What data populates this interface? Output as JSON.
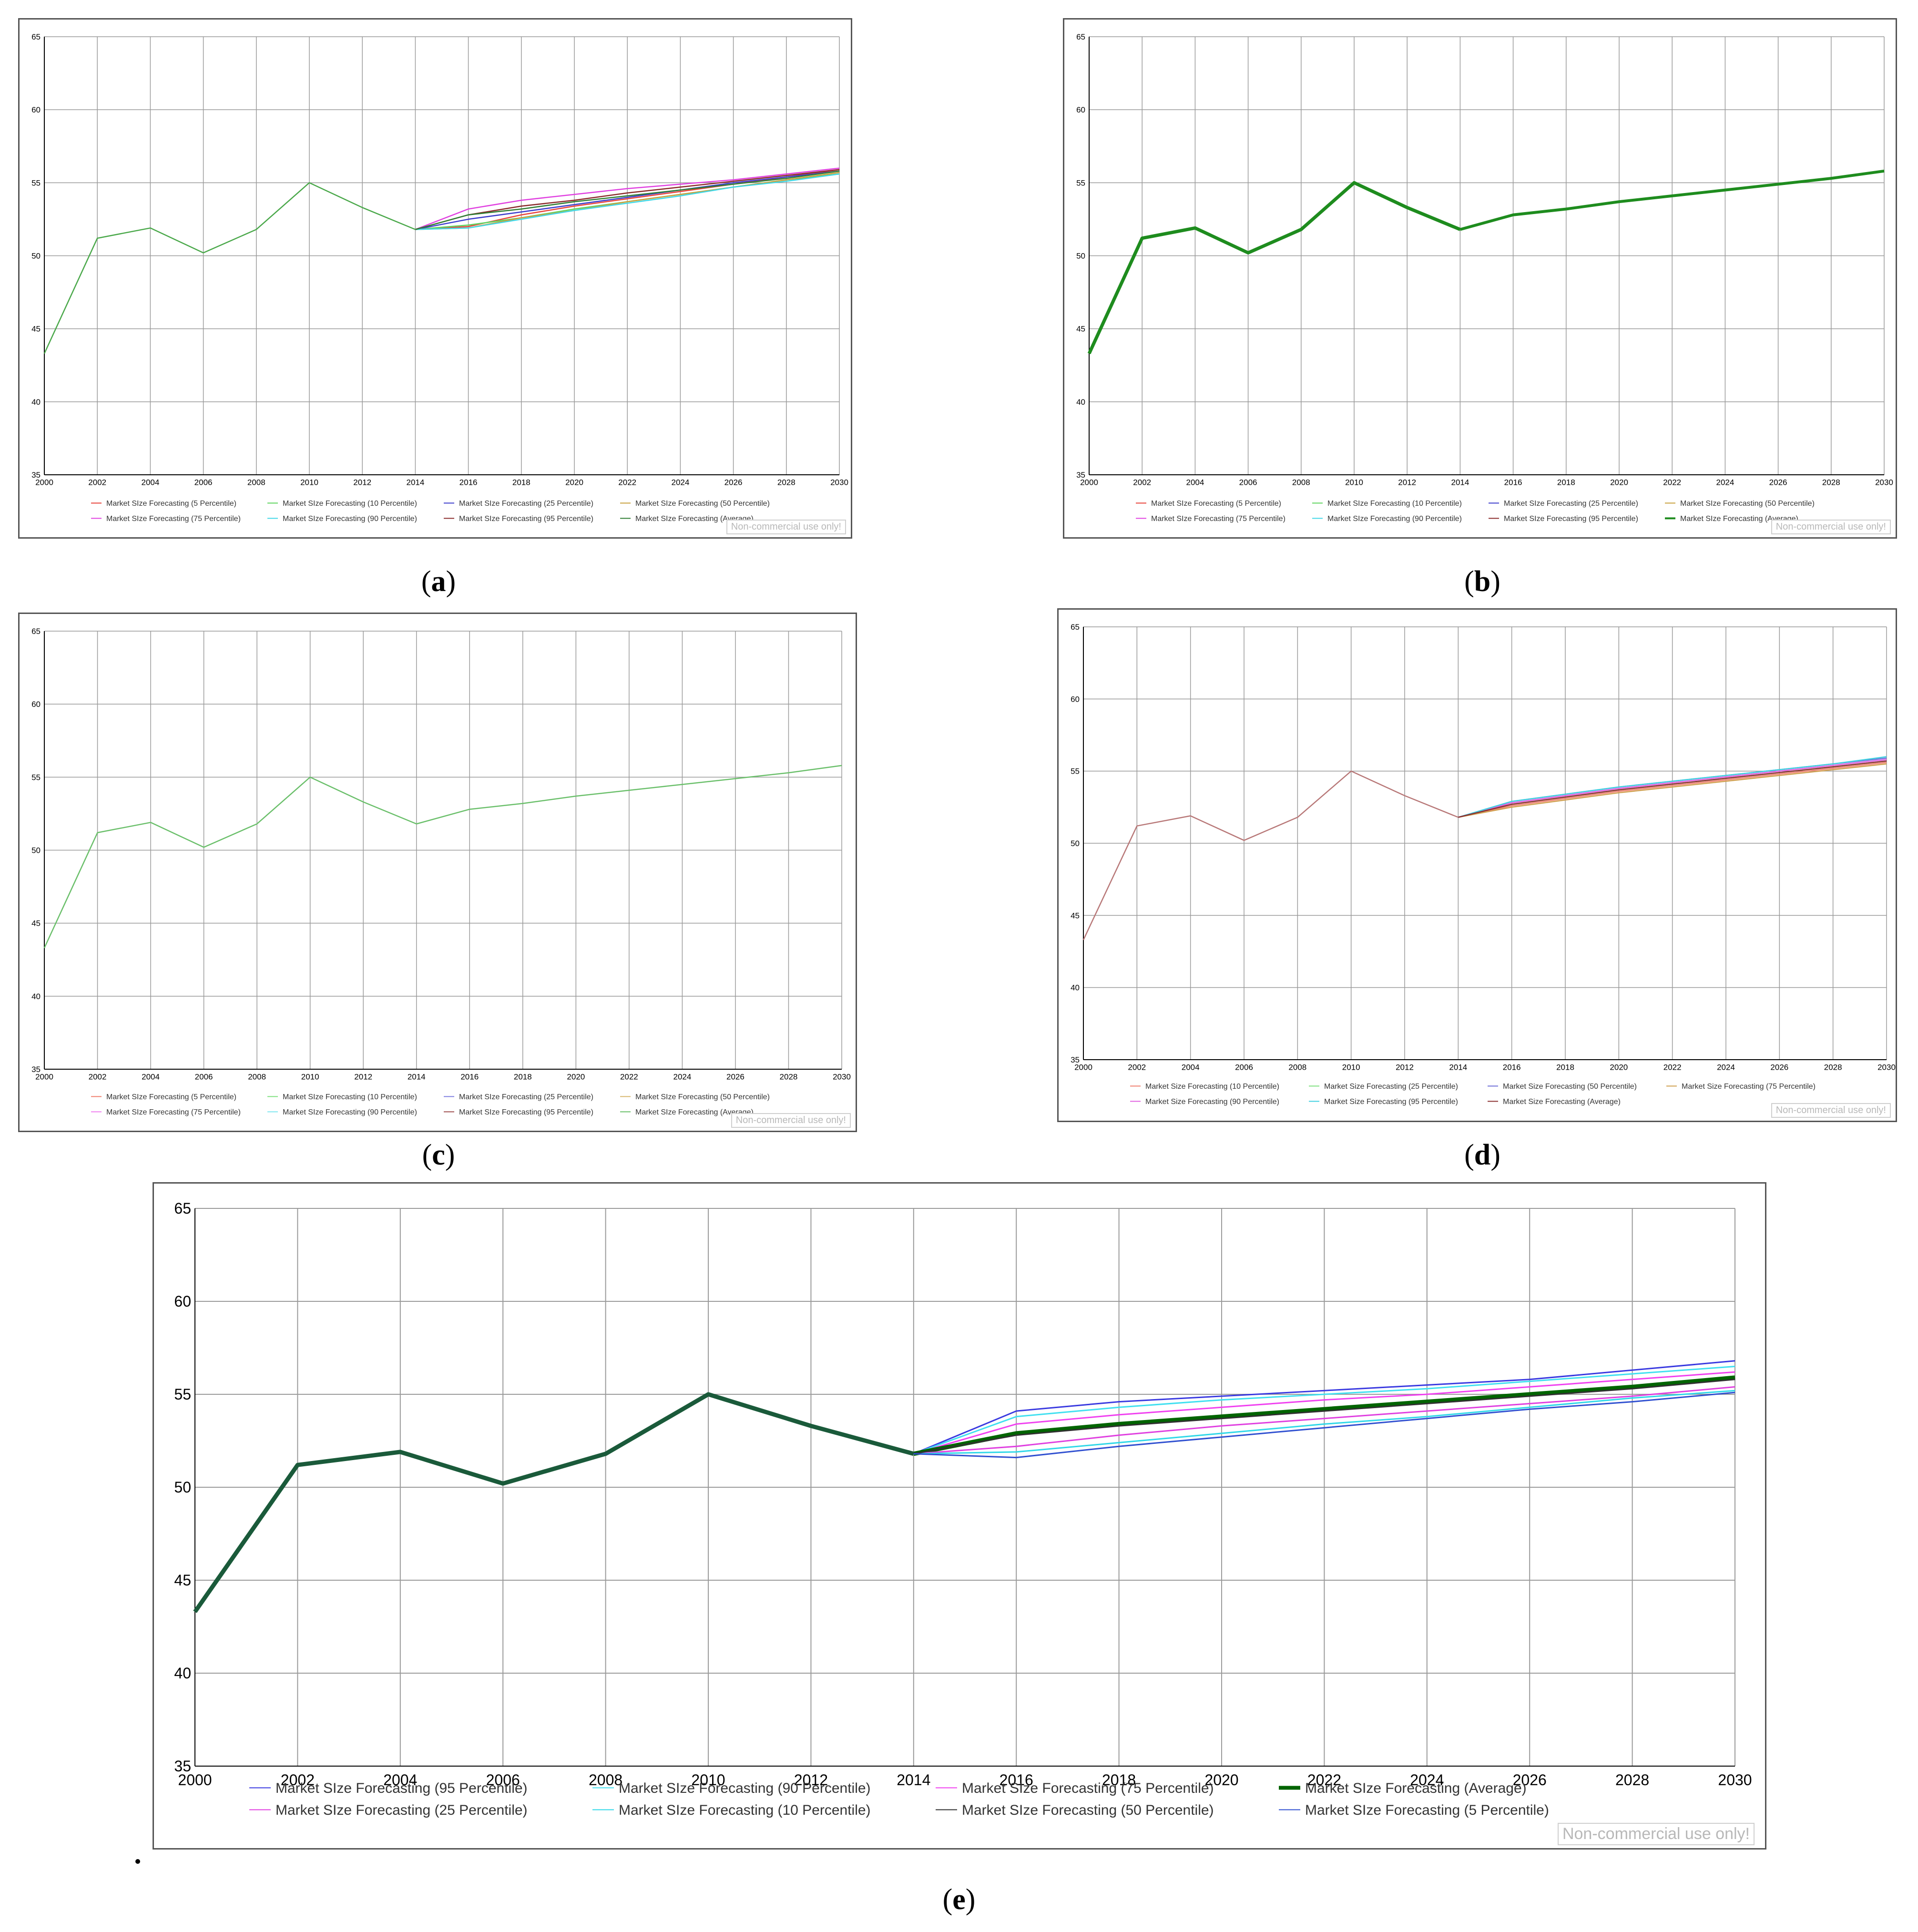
{
  "captions": {
    "a": "a",
    "b": "b",
    "c": "c",
    "d": "d",
    "e": "e"
  },
  "watermark": "Non-commercial use only!",
  "chart_data": [
    {
      "panel": "a",
      "type": "line",
      "ylim": [
        35,
        65
      ],
      "yticks": [
        35,
        40,
        45,
        50,
        55,
        60,
        65
      ],
      "xticks": [
        2000,
        2002,
        2004,
        2006,
        2008,
        2010,
        2012,
        2014,
        2016,
        2018,
        2020,
        2022,
        2024,
        2026,
        2028,
        2030
      ],
      "grid": true,
      "legend_position": "bottom",
      "history": {
        "x": [
          2000,
          2002,
          2004,
          2006,
          2008,
          2010,
          2012,
          2014
        ],
        "values": [
          43.3,
          51.2,
          51.9,
          50.2,
          51.8,
          55.0,
          53.3,
          51.8
        ],
        "color": "#4aa84a"
      },
      "forecast_x": [
        2014,
        2016,
        2018,
        2020,
        2022,
        2024,
        2026,
        2028,
        2030
      ],
      "series": [
        {
          "name": "Market SIze Forecasting (5 Percentile)",
          "color": "#e8433a",
          "values": [
            51.8,
            52.0,
            52.8,
            53.4,
            53.9,
            54.4,
            54.9,
            55.4,
            55.9
          ]
        },
        {
          "name": "Market SIze Forecasting (10 Percentile)",
          "color": "#5fd45f",
          "values": [
            51.8,
            52.1,
            52.6,
            53.2,
            53.7,
            54.2,
            54.7,
            55.2,
            55.6
          ]
        },
        {
          "name": "Market SIze Forecasting (25 Percentile)",
          "color": "#3c3ccc",
          "values": [
            51.8,
            52.5,
            53.0,
            53.5,
            54.0,
            54.5,
            55.0,
            55.4,
            55.8
          ]
        },
        {
          "name": "Market SIze Forecasting (50 Percentile)",
          "color": "#c8a03c",
          "values": [
            51.8,
            51.9,
            52.6,
            53.1,
            53.7,
            54.2,
            54.7,
            55.2,
            55.7
          ]
        },
        {
          "name": "Market SIze Forecasting (75 Percentile)",
          "color": "#e040e0",
          "values": [
            51.8,
            53.2,
            53.8,
            54.2,
            54.6,
            54.9,
            55.2,
            55.6,
            56.0
          ]
        },
        {
          "name": "Market SIze Forecasting (90 Percentile)",
          "color": "#40d8e8",
          "values": [
            51.8,
            51.9,
            52.5,
            53.1,
            53.6,
            54.1,
            54.7,
            55.1,
            55.6
          ]
        },
        {
          "name": "Market SIze Forecasting (95 Percentile)",
          "color": "#8a2a2a",
          "values": [
            51.8,
            52.8,
            53.4,
            53.8,
            54.3,
            54.7,
            55.1,
            55.5,
            55.9
          ]
        },
        {
          "name": "Market SIze Forecasting (Average)",
          "color": "#2e7d32",
          "values": [
            51.8,
            52.8,
            53.2,
            53.7,
            54.1,
            54.5,
            54.9,
            55.3,
            55.8
          ]
        }
      ]
    },
    {
      "panel": "b",
      "type": "line",
      "ylim": [
        35,
        65
      ],
      "yticks": [
        35,
        40,
        45,
        50,
        55,
        60,
        65
      ],
      "xticks": [
        2000,
        2002,
        2004,
        2006,
        2008,
        2010,
        2012,
        2014,
        2016,
        2018,
        2020,
        2022,
        2024,
        2026,
        2028,
        2030
      ],
      "grid": true,
      "legend_position": "bottom",
      "history": {
        "x": [
          2000,
          2002,
          2004,
          2006,
          2008,
          2010,
          2012,
          2014
        ],
        "values": [
          43.3,
          51.2,
          51.9,
          50.2,
          51.8,
          55.0,
          53.3,
          51.8
        ],
        "color": "#1e8c1e",
        "width": 7
      },
      "forecast_x": [
        2014,
        2016,
        2018,
        2020,
        2022,
        2024,
        2026,
        2028,
        2030
      ],
      "series": [
        {
          "name": "Market SIze Forecasting (5 Percentile)",
          "color": "#e8433a"
        },
        {
          "name": "Market SIze Forecasting (10 Percentile)",
          "color": "#5fd45f"
        },
        {
          "name": "Market SIze Forecasting (25 Percentile)",
          "color": "#3c3ccc"
        },
        {
          "name": "Market SIze Forecasting (50 Percentile)",
          "color": "#c8a03c"
        },
        {
          "name": "Market SIze Forecasting (75 Percentile)",
          "color": "#e040e0"
        },
        {
          "name": "Market SIze Forecasting (90 Percentile)",
          "color": "#40d8e8"
        },
        {
          "name": "Market SIze Forecasting (95 Percentile)",
          "color": "#8a2a2a"
        },
        {
          "name": "Market SIze Forecasting (Average)",
          "color": "#1e8c1e",
          "bold": true,
          "values": [
            51.8,
            52.8,
            53.2,
            53.7,
            54.1,
            54.5,
            54.9,
            55.3,
            55.8
          ]
        }
      ]
    },
    {
      "panel": "c",
      "type": "line",
      "ylim": [
        35,
        65
      ],
      "yticks": [
        35,
        40,
        45,
        50,
        55,
        60,
        65
      ],
      "xticks": [
        2000,
        2002,
        2004,
        2006,
        2008,
        2010,
        2012,
        2014,
        2016,
        2018,
        2020,
        2022,
        2024,
        2026,
        2028,
        2030
      ],
      "grid": true,
      "legend_position": "bottom",
      "history": {
        "x": [
          2000,
          2002,
          2004,
          2006,
          2008,
          2010,
          2012,
          2014
        ],
        "values": [
          43.3,
          51.2,
          51.9,
          50.2,
          51.8,
          55.0,
          53.3,
          51.8
        ],
        "color": "#6abf6a"
      },
      "forecast_x": [
        2014,
        2016,
        2018,
        2020,
        2022,
        2024,
        2026,
        2028,
        2030
      ],
      "series": [
        {
          "name": "Market SIze Forecasting (5 Percentile)",
          "color": "#f08070"
        },
        {
          "name": "Market SIze Forecasting (10 Percentile)",
          "color": "#80e080"
        },
        {
          "name": "Market SIze Forecasting (25 Percentile)",
          "color": "#8080e0"
        },
        {
          "name": "Market SIze Forecasting (50 Percentile)",
          "color": "#d8b870"
        },
        {
          "name": "Market SIze Forecasting (75 Percentile)",
          "color": "#f080f0"
        },
        {
          "name": "Market SIze Forecasting (90 Percentile)",
          "color": "#80e8f0"
        },
        {
          "name": "Market SIze Forecasting (95 Percentile)",
          "color": "#a05050"
        },
        {
          "name": "Market SIze Forecasting (Average)",
          "color": "#6abf6a",
          "values": [
            51.8,
            52.8,
            53.2,
            53.7,
            54.1,
            54.5,
            54.9,
            55.3,
            55.8
          ]
        }
      ]
    },
    {
      "panel": "d",
      "type": "line",
      "ylim": [
        35,
        65
      ],
      "yticks": [
        35,
        40,
        45,
        50,
        55,
        60,
        65
      ],
      "xticks": [
        2000,
        2002,
        2004,
        2006,
        2008,
        2010,
        2012,
        2014,
        2016,
        2018,
        2020,
        2022,
        2024,
        2026,
        2028,
        2030
      ],
      "grid": true,
      "legend_position": "bottom",
      "history": {
        "x": [
          2000,
          2002,
          2004,
          2006,
          2008,
          2010,
          2012,
          2014
        ],
        "values": [
          43.3,
          51.2,
          51.9,
          50.2,
          51.8,
          55.0,
          53.3,
          51.8
        ],
        "color": "#b87878"
      },
      "forecast_x": [
        2014,
        2016,
        2018,
        2020,
        2022,
        2024,
        2026,
        2028,
        2030
      ],
      "series": [
        {
          "name": "Market Size Forecasting (10 Percentile)",
          "color": "#f08070",
          "values": [
            51.8,
            52.6,
            53.1,
            53.6,
            54.0,
            54.4,
            54.8,
            55.2,
            55.6
          ]
        },
        {
          "name": "Market Size Forecasting (25 Percentile)",
          "color": "#80e080",
          "values": [
            51.8,
            52.7,
            53.2,
            53.7,
            54.1,
            54.5,
            54.9,
            55.3,
            55.7
          ]
        },
        {
          "name": "Market Size Forecasting (50 Percentile)",
          "color": "#7070d8",
          "values": [
            51.8,
            52.9,
            53.4,
            53.9,
            54.3,
            54.7,
            55.1,
            55.5,
            55.9
          ]
        },
        {
          "name": "Market Size Forecasting (75 Percentile)",
          "color": "#d0a050",
          "values": [
            51.8,
            52.5,
            53.0,
            53.5,
            53.9,
            54.3,
            54.7,
            55.1,
            55.5
          ]
        },
        {
          "name": "Market Size Forecasting (90 Percentile)",
          "color": "#e060e0",
          "values": [
            51.8,
            52.8,
            53.3,
            53.8,
            54.2,
            54.6,
            55.0,
            55.4,
            55.8
          ]
        },
        {
          "name": "Market Size Forecasting (95 Percentile)",
          "color": "#40d0e0",
          "values": [
            51.8,
            52.9,
            53.4,
            53.9,
            54.3,
            54.7,
            55.1,
            55.5,
            56.0
          ]
        },
        {
          "name": "Market Size Forecasting (Average)",
          "color": "#8a3030",
          "values": [
            51.8,
            52.7,
            53.2,
            53.7,
            54.1,
            54.5,
            54.9,
            55.3,
            55.7
          ]
        }
      ]
    },
    {
      "panel": "e",
      "type": "line",
      "ylim": [
        35,
        65
      ],
      "yticks": [
        35,
        40,
        45,
        50,
        55,
        60,
        65
      ],
      "xticks": [
        2000,
        2002,
        2004,
        2006,
        2008,
        2010,
        2012,
        2014,
        2016,
        2018,
        2020,
        2022,
        2024,
        2026,
        2028,
        2030
      ],
      "grid": true,
      "legend_position": "bottom",
      "history": {
        "x": [
          2000,
          2002,
          2004,
          2006,
          2008,
          2010,
          2012,
          2014
        ],
        "values": [
          43.3,
          51.2,
          51.9,
          50.2,
          51.8,
          55.0,
          53.3,
          51.8
        ],
        "color": "#1a5a3a",
        "width": 9
      },
      "forecast_x": [
        2014,
        2016,
        2018,
        2020,
        2022,
        2024,
        2026,
        2028,
        2030
      ],
      "series": [
        {
          "name": "Market SIze Forecasting (95 Percentile)",
          "color": "#3a3ae0",
          "values": [
            51.8,
            54.1,
            54.6,
            54.9,
            55.2,
            55.5,
            55.8,
            56.3,
            56.8
          ]
        },
        {
          "name": "Market SIze Forecasting (90 Percentile)",
          "color": "#40e0f0",
          "values": [
            51.8,
            53.8,
            54.3,
            54.7,
            55.0,
            55.3,
            55.7,
            56.1,
            56.5
          ]
        },
        {
          "name": "Market SIze Forecasting (75 Percentile)",
          "color": "#f040f0",
          "values": [
            51.8,
            53.4,
            53.9,
            54.3,
            54.7,
            55.0,
            55.4,
            55.8,
            56.2
          ]
        },
        {
          "name": "Market SIze Forecasting (Average)",
          "color": "#006400",
          "bold": true,
          "values": [
            51.8,
            52.9,
            53.4,
            53.8,
            54.2,
            54.6,
            55.0,
            55.4,
            55.9
          ]
        },
        {
          "name": "Market SIze Forecasting (25 Percentile)",
          "color": "#e040e0",
          "values": [
            51.8,
            52.2,
            52.8,
            53.3,
            53.7,
            54.1,
            54.5,
            54.9,
            55.4
          ]
        },
        {
          "name": "Market SIze Forecasting (10 Percentile)",
          "color": "#30d8e8",
          "values": [
            51.8,
            51.9,
            52.4,
            52.9,
            53.4,
            53.8,
            54.3,
            54.8,
            55.2
          ]
        },
        {
          "name": "Market SIze Forecasting (50 Percentile)",
          "color": "#303030",
          "values": [
            51.8,
            52.8,
            53.3,
            53.7,
            54.1,
            54.5,
            54.9,
            55.3,
            55.8
          ]
        },
        {
          "name": "Market SIze Forecasting (5 Percentile)",
          "color": "#3050d0",
          "values": [
            51.8,
            51.6,
            52.2,
            52.7,
            53.2,
            53.7,
            54.2,
            54.6,
            55.1
          ]
        }
      ]
    }
  ]
}
